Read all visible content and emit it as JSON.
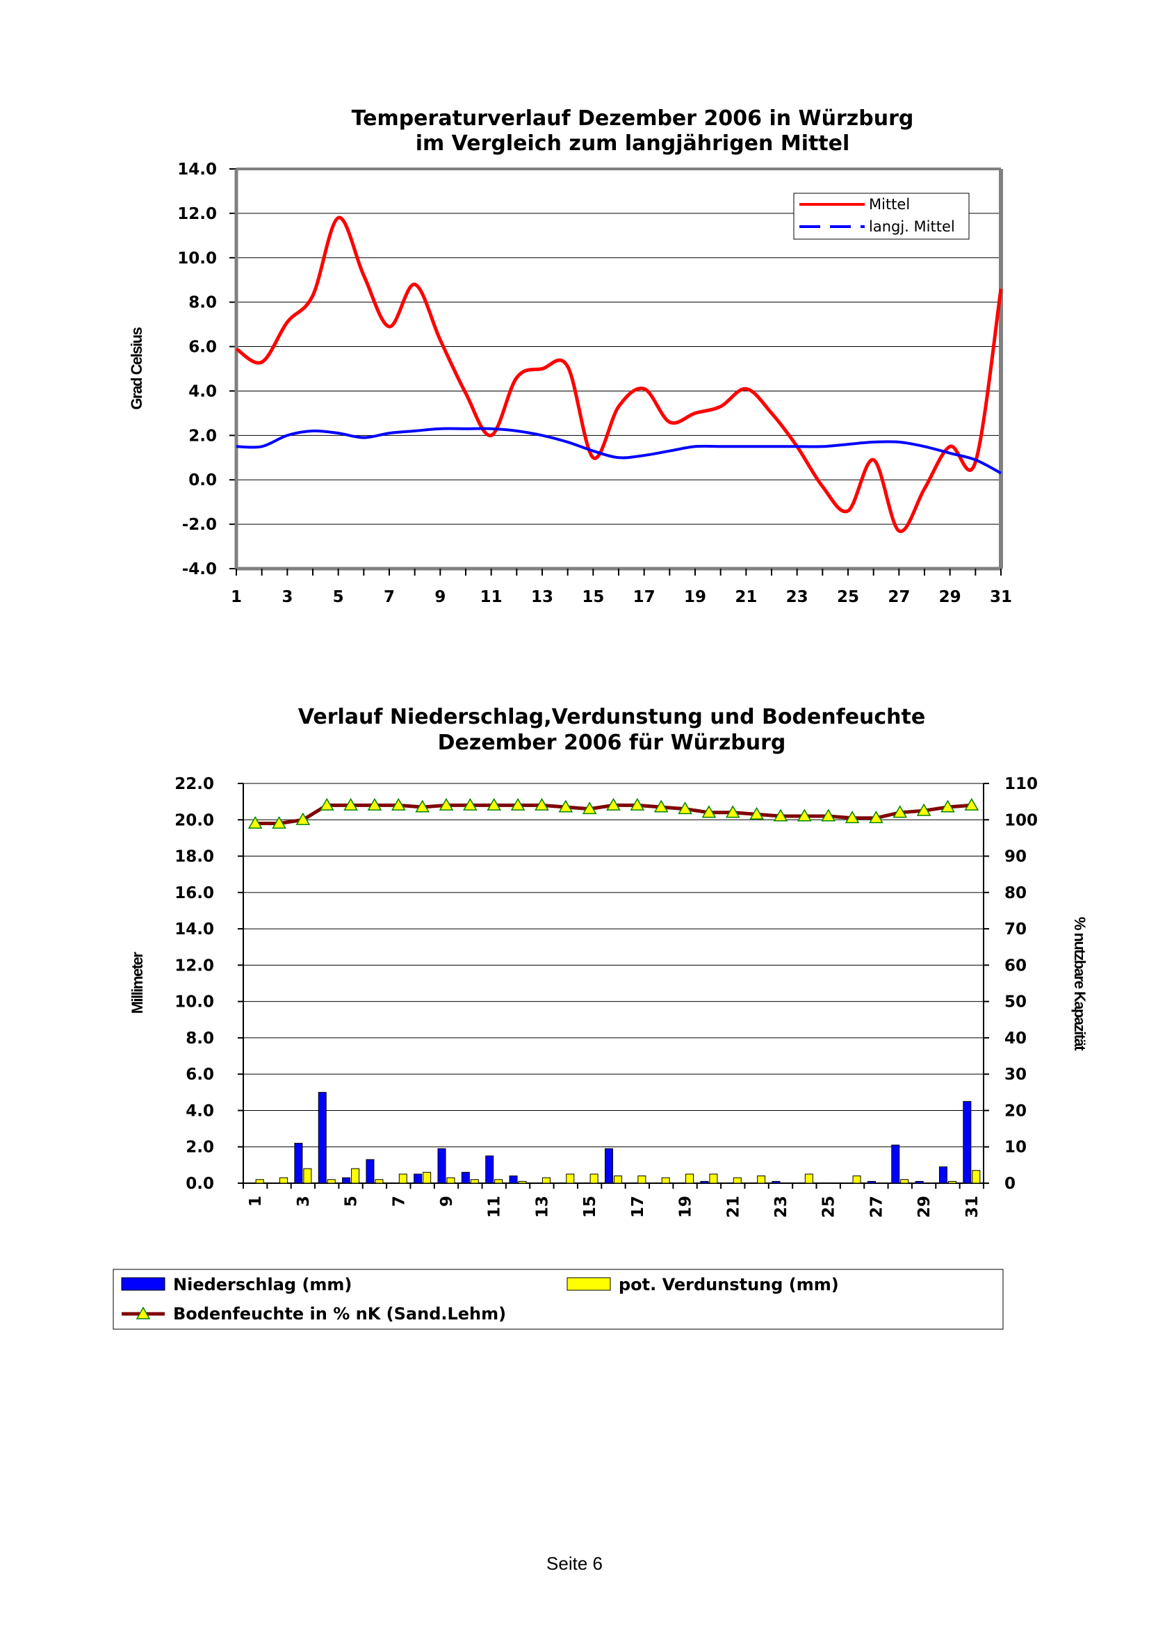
{
  "footer": "Seite 6",
  "chart_data": [
    {
      "type": "line",
      "title": [
        "Temperaturverlauf Dezember 2006 in Würzburg",
        "im Vergleich zum langjährigen Mittel"
      ],
      "ylabel": "Grad Celsius",
      "ylim": [
        -4,
        14
      ],
      "yticks": [
        "14.0",
        "12.0",
        "10.0",
        "8.0",
        "6.0",
        "4.0",
        "2.0",
        "0.0",
        "-2.0",
        "-4.0"
      ],
      "xticks": [
        "1",
        "3",
        "5",
        "7",
        "9",
        "11",
        "13",
        "15",
        "17",
        "19",
        "21",
        "23",
        "25",
        "27",
        "29",
        "31"
      ],
      "xlim": [
        1,
        31
      ],
      "grid": true,
      "legend_position": "top-right",
      "x": [
        1,
        2,
        3,
        4,
        5,
        6,
        7,
        8,
        9,
        10,
        11,
        12,
        13,
        14,
        15,
        16,
        17,
        18,
        19,
        20,
        21,
        22,
        23,
        24,
        25,
        26,
        27,
        28,
        29,
        30,
        31
      ],
      "series": [
        {
          "name": "Mittel",
          "color": "#ff0000",
          "style": "solid",
          "values": [
            5.9,
            5.3,
            7.1,
            8.3,
            11.8,
            9.2,
            6.9,
            8.8,
            6.3,
            3.9,
            2.0,
            4.6,
            5.0,
            5.1,
            1.0,
            3.3,
            4.1,
            2.6,
            3.0,
            3.3,
            4.1,
            3.0,
            1.5,
            -0.3,
            -1.4,
            0.9,
            -2.3,
            -0.4,
            1.5,
            0.8,
            8.6
          ]
        },
        {
          "name": "langj. Mittel",
          "color": "#0000ff",
          "style": "dashed",
          "values": [
            1.5,
            1.5,
            2.0,
            2.2,
            2.1,
            1.9,
            2.1,
            2.2,
            2.3,
            2.3,
            2.3,
            2.2,
            2.0,
            1.7,
            1.3,
            1.0,
            1.1,
            1.3,
            1.5,
            1.5,
            1.5,
            1.5,
            1.5,
            1.5,
            1.6,
            1.7,
            1.7,
            1.5,
            1.2,
            0.9,
            0.3
          ]
        }
      ]
    },
    {
      "type": "bar",
      "title": [
        "Verlauf Niederschlag,Verdunstung und Bodenfeuchte",
        "Dezember 2006 für Würzburg"
      ],
      "ylabel": "Millimeter",
      "y2label": "% nutzbare Kapazität",
      "ylim": [
        0,
        22
      ],
      "y2lim": [
        0,
        110
      ],
      "yticks": [
        "22.0",
        "20.0",
        "18.0",
        "16.0",
        "14.0",
        "12.0",
        "10.0",
        "8.0",
        "6.0",
        "4.0",
        "2.0",
        "0.0"
      ],
      "y2ticks": [
        "110",
        "100",
        "90",
        "80",
        "70",
        "60",
        "50",
        "40",
        "30",
        "20",
        "10",
        "0"
      ],
      "xticks": [
        "1",
        "3",
        "5",
        "7",
        "9",
        "11",
        "13",
        "15",
        "17",
        "19",
        "21",
        "23",
        "25",
        "27",
        "29",
        "31"
      ],
      "grid": true,
      "categories": [
        1,
        2,
        3,
        4,
        5,
        6,
        7,
        8,
        9,
        10,
        11,
        12,
        13,
        14,
        15,
        16,
        17,
        18,
        19,
        20,
        21,
        22,
        23,
        24,
        25,
        26,
        27,
        28,
        29,
        30,
        31
      ],
      "series": [
        {
          "name": "Niederschlag (mm)",
          "color": "#0000ff",
          "axis": "left",
          "values": [
            0,
            0,
            2.2,
            5.0,
            0.3,
            1.3,
            0,
            0.5,
            1.9,
            0.6,
            1.5,
            0.4,
            0,
            0,
            0,
            1.9,
            0,
            0,
            0,
            0.1,
            0,
            0,
            0.1,
            0,
            0,
            0,
            0.1,
            2.1,
            0.1,
            0.9,
            4.5
          ]
        },
        {
          "name": "pot. Verdunstung (mm)",
          "color": "#ffff00",
          "axis": "left",
          "values": [
            0.2,
            0.3,
            0.8,
            0.2,
            0.8,
            0.2,
            0.5,
            0.6,
            0.3,
            0.2,
            0.2,
            0.1,
            0.3,
            0.5,
            0.5,
            0.4,
            0.4,
            0.3,
            0.5,
            0.5,
            0.3,
            0.4,
            0,
            0.5,
            0,
            0.4,
            0,
            0.2,
            0,
            0.1,
            0.7
          ]
        },
        {
          "name": "Bodenfeuchte in % nK (Sand.Lehm)",
          "color": "#800000",
          "marker_color": "#ffff00",
          "axis": "right",
          "values": [
            99,
            99,
            100,
            104,
            104,
            104,
            104,
            103.5,
            104,
            104,
            104,
            104,
            104,
            103.5,
            103,
            104,
            104,
            103.5,
            103,
            102,
            102,
            101.5,
            101,
            101,
            101,
            100.5,
            100.5,
            102,
            102.5,
            103.5,
            104
          ]
        }
      ]
    }
  ]
}
